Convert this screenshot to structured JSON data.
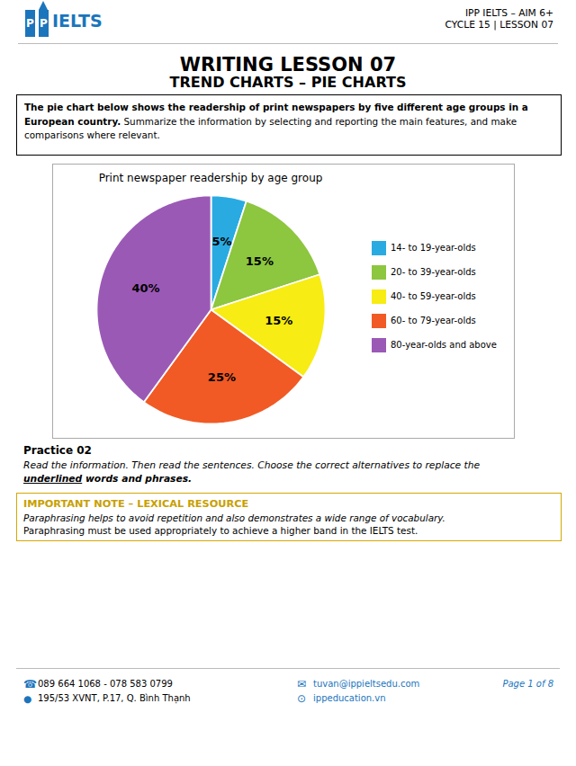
{
  "chart_data": {
    "type": "pie",
    "title": "Print newspaper readership by age group",
    "categories": [
      "14- to 19-year-olds",
      "20- to 39-year-olds",
      "40- to 59-year-olds",
      "60- to 79-year-olds",
      "80-year-olds and above"
    ],
    "values": [
      5,
      15,
      15,
      25,
      40
    ],
    "value_labels": [
      "5%",
      "15%",
      "15%",
      "25%",
      "40%"
    ],
    "colors": [
      "#29ABE2",
      "#8DC63F",
      "#F7EC13",
      "#F15A24",
      "#9B59B6"
    ],
    "data_labels": true,
    "legend": "right"
  },
  "page": {
    "bg_color": "#FFFFFF",
    "logo_color": "#1B75BC",
    "logo_letters": [
      "P",
      "P"
    ],
    "logo_text": "IELTS",
    "header_right": [
      "IPP IELTS – AIM 6+",
      "CYCLE 15 | LESSON 07"
    ],
    "page_title": "WRITING LESSON 07",
    "page_subtitle": "TREND CHARTS – PIE CHARTS",
    "prompt_bold": "The pie chart below shows the readership of print newspapers by five different age groups in a European country.",
    "prompt_normal": " Summarize the information by selecting and reporting the main features, and make comparisons where relevant.",
    "practice_title": "Practice 02",
    "practice_line1": "Read the information. Then read the sentences. Choose the correct alternatives to replace the",
    "practice_line2_under": "underlined",
    "practice_line2_rest": " words and phrases.",
    "important_title": "IMPORTANT NOTE – LEXICAL RESOURCE",
    "important_line1": "Paraphrasing helps to avoid repetition and also demonstrates a wide range of vocabulary.",
    "important_line2": "Paraphrasing must be used appropriately to achieve a higher band in the IELTS test.",
    "icons": {
      "phone": "☎",
      "address": "●",
      "email": "✉",
      "web": "⊙"
    },
    "footer_phone": "089 664 1068 - 078 583 0799",
    "footer_address": "195/53 XVNT, P.17, Q. Bình Thạnh",
    "footer_email": "tuvan@ippieltsedu.com",
    "footer_web": "ippeducation.vn",
    "footer_page": "Page 1 of 8"
  }
}
